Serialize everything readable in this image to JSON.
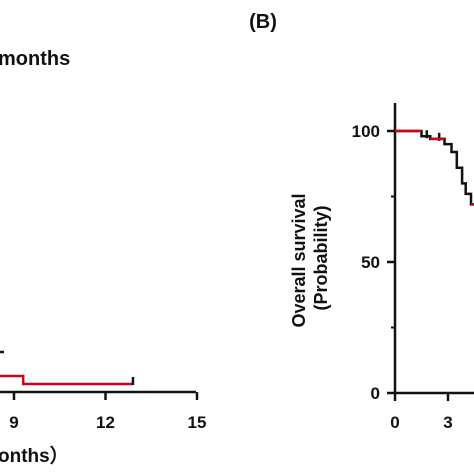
{
  "panel_b_label": "(B)",
  "chart_data": [
    {
      "type": "line",
      "subtitle": "months",
      "xlabel": "onths）",
      "ylabel": "",
      "xlim": [
        0,
        15
      ],
      "ylim": [
        0,
        100
      ],
      "x_ticks": [
        9,
        12,
        15
      ],
      "y_ticks": [],
      "series": [
        {
          "name": "",
          "color": "#d0021b",
          "step_x": [
            0,
            9.3,
            9.3,
            12.9
          ],
          "step_y": [
            16,
            16,
            8,
            8
          ],
          "censor_x": [
            12.9
          ],
          "censor_y": [
            8
          ]
        }
      ]
    },
    {
      "type": "line",
      "title": "(B)",
      "ylabel": "Overall survival\n(Probability)",
      "xlabel": "",
      "xlim": [
        0,
        9
      ],
      "ylim": [
        0,
        100
      ],
      "x_ticks": [
        0,
        3
      ],
      "y_ticks": [
        0,
        50,
        100
      ],
      "series": [
        {
          "name": "",
          "color": "#d0021b",
          "step_x": [
            0,
            1.5,
            1.5,
            2.0,
            2.0,
            2.8,
            2.8,
            3.2,
            3.2,
            3.5,
            3.5,
            3.8,
            3.8,
            4.0,
            4.0,
            4.3,
            4.3,
            4.6,
            4.6,
            5.0
          ],
          "step_y": [
            100,
            100,
            98,
            98,
            97,
            97,
            95,
            95,
            92,
            92,
            86,
            86,
            80,
            80,
            76,
            76,
            72,
            72,
            70,
            70
          ],
          "censor_x": [
            1.8,
            2.5
          ],
          "censor_y": [
            98,
            97
          ]
        }
      ]
    }
  ]
}
